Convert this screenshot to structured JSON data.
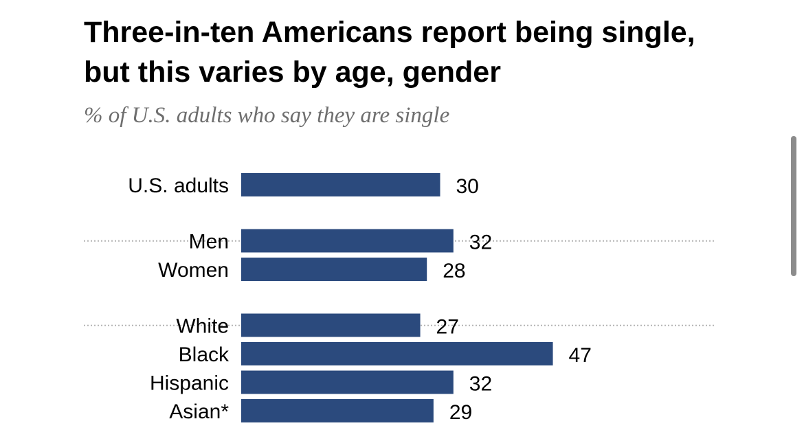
{
  "chart_data": {
    "type": "bar",
    "title": "Three-in-ten Americans report being single, but this varies by age, gender",
    "subtitle": "% of U.S. adults who say they are single",
    "groups": [
      {
        "categories": [
          "U.S. adults"
        ],
        "values": [
          30
        ]
      },
      {
        "categories": [
          "Men",
          "Women"
        ],
        "values": [
          32,
          28
        ]
      },
      {
        "categories": [
          "White",
          "Black",
          "Hispanic",
          "Asian*"
        ],
        "values": [
          27,
          47,
          32,
          29
        ]
      }
    ],
    "bar_color": "#2b4a7d",
    "separator_color": "#b3b3b3",
    "text_color": "#000000",
    "subtitle_color": "#6e6e6e"
  }
}
